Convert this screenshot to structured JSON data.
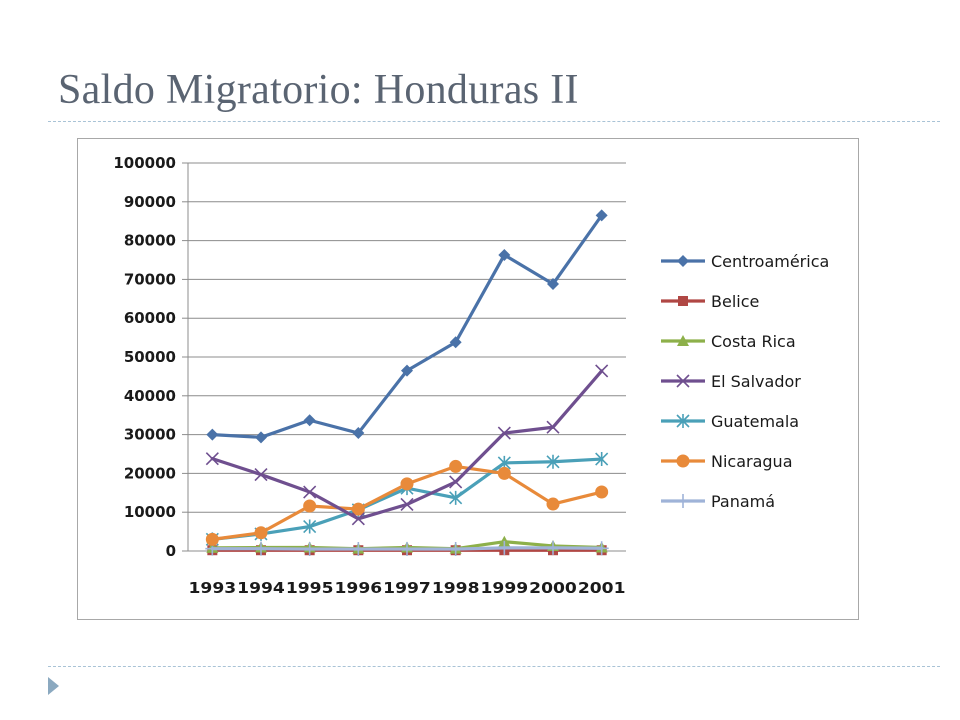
{
  "slide": {
    "title": "Saldo Migratorio: Honduras II"
  },
  "chart_data": {
    "type": "line",
    "title": "",
    "xlabel": "",
    "ylabel": "",
    "ylim": [
      0,
      100000
    ],
    "yticks": [
      0,
      10000,
      20000,
      30000,
      40000,
      50000,
      60000,
      70000,
      80000,
      90000,
      100000
    ],
    "grid": "horizontal",
    "legend_position": "right",
    "categories": [
      "1993",
      "1994",
      "1995",
      "1996",
      "1997",
      "1998",
      "1999",
      "2000",
      "2001"
    ],
    "series": [
      {
        "name": "Centroamérica",
        "color": "#4a72a8",
        "marker": "diamond",
        "values": [
          30000,
          29300,
          33700,
          30400,
          46500,
          53800,
          76300,
          68800,
          86500
        ]
      },
      {
        "name": "Belice",
        "color": "#b04744",
        "marker": "square",
        "values": [
          200,
          200,
          200,
          200,
          200,
          200,
          200,
          200,
          200
        ]
      },
      {
        "name": "Costa Rica",
        "color": "#8db04a",
        "marker": "triangle",
        "values": [
          800,
          900,
          900,
          600,
          900,
          600,
          2400,
          1300,
          900
        ]
      },
      {
        "name": "El Salvador",
        "color": "#6f4f8f",
        "marker": "x",
        "values": [
          23800,
          19700,
          15200,
          8300,
          12000,
          17800,
          30400,
          31900,
          46400
        ]
      },
      {
        "name": "Guatemala",
        "color": "#4aa0b8",
        "marker": "asterisk",
        "values": [
          3000,
          4400,
          6300,
          10600,
          16200,
          13700,
          22700,
          23000,
          23700
        ]
      },
      {
        "name": "Nicaragua",
        "color": "#e88a3a",
        "marker": "circle",
        "values": [
          3000,
          4700,
          11600,
          10800,
          17300,
          21800,
          20000,
          12100,
          15200
        ]
      },
      {
        "name": "Panamá",
        "color": "#9fb3d8",
        "marker": "plus",
        "values": [
          600,
          600,
          500,
          500,
          500,
          500,
          800,
          800,
          700
        ]
      }
    ]
  }
}
